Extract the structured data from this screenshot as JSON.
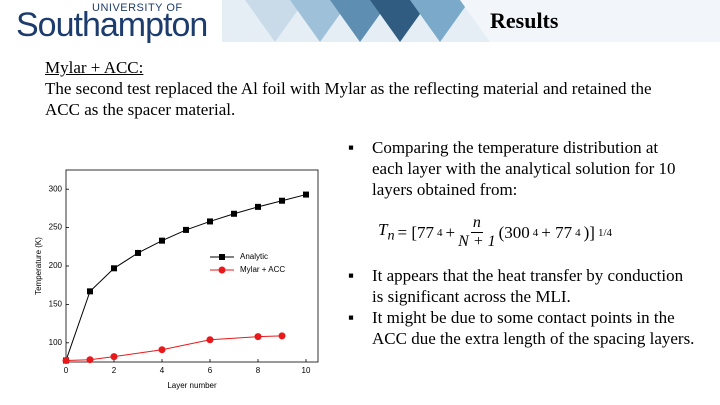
{
  "header": {
    "logo_small": "UNIVERSITY OF",
    "logo_large": "Southampton",
    "title": "Results"
  },
  "heading": "Mylar + ACC:",
  "intro": "The second test replaced the Al foil with Mylar as the reflecting material and retained the ACC as the spacer material.",
  "bullets": [
    "Comparing the temperature distribution at each layer with the analytical solution for 10 layers obtained from:",
    "It appears that the heat transfer by conduction is significant across the MLI.",
    "It might be due to some contact points in the ACC due the extra length of the spacing layers."
  ],
  "formula": {
    "lhs": "T",
    "lhs_sub": "n",
    "open": "= [77",
    "exp1": "4",
    "plus": "+",
    "num": "n",
    "den": "N + 1",
    "mid": "(300",
    "exp2": "4",
    "plus2": "+ 77",
    "exp3": "4",
    "close": ")]",
    "exp4": "1/4"
  },
  "chart_data": {
    "type": "line",
    "x_label": "Layer number",
    "y_label": "Temperature (K)",
    "xlim": [
      0,
      10.5
    ],
    "ylim": [
      75,
      325
    ],
    "xticks": [
      0,
      2,
      4,
      6,
      8,
      10
    ],
    "yticks": [
      100,
      150,
      200,
      250,
      300
    ],
    "legend": "center right",
    "series": [
      {
        "name": "Analytic",
        "color": "#000000",
        "marker": "square",
        "x": [
          0,
          1,
          2,
          3,
          4,
          5,
          6,
          7,
          8,
          9,
          10
        ],
        "values": [
          77,
          167,
          197,
          217,
          233,
          247,
          258,
          268,
          277,
          285,
          293
        ]
      },
      {
        "name": "Mylar + ACC",
        "color": "#e8191b",
        "marker": "circle",
        "x": [
          0,
          1,
          2,
          4,
          6,
          8,
          9
        ],
        "values": [
          77,
          78,
          82,
          91,
          104,
          108,
          109
        ]
      }
    ]
  }
}
